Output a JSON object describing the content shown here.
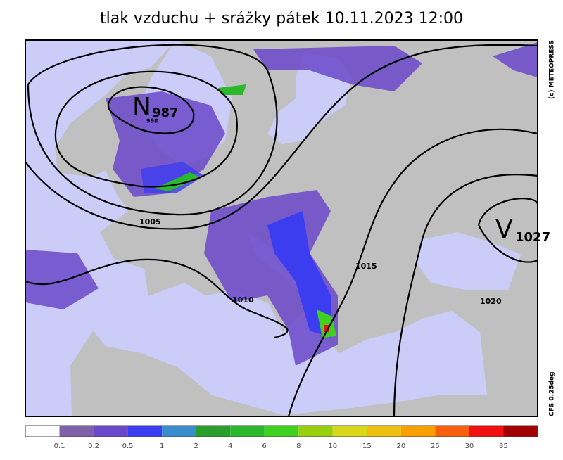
{
  "title": "tlak vzduchu + srážky   pátek 10.11.2023 12:00",
  "map": {
    "centers": [
      {
        "label": "N",
        "value": 987,
        "sub": 998
      },
      {
        "label": "V",
        "value": 1027
      }
    ],
    "isobar_labels": [
      1005,
      1010,
      1015,
      1020
    ]
  },
  "credits": [
    "(c) METEOPRESS",
    "CFS  0.25deg"
  ],
  "legend": {
    "colors": [
      "#ffffff",
      "#8060a8",
      "#6a48c8",
      "#3c3cf0",
      "#3a8ccc",
      "#2a9e2a",
      "#2cb82c",
      "#40d020",
      "#98d010",
      "#d8d818",
      "#f0c010",
      "#f8a000",
      "#f86010",
      "#f01010",
      "#a00000"
    ],
    "labels": [
      0.1,
      0.2,
      0.5,
      1,
      2,
      4,
      6,
      8,
      10,
      15,
      20,
      25,
      30,
      35
    ]
  }
}
